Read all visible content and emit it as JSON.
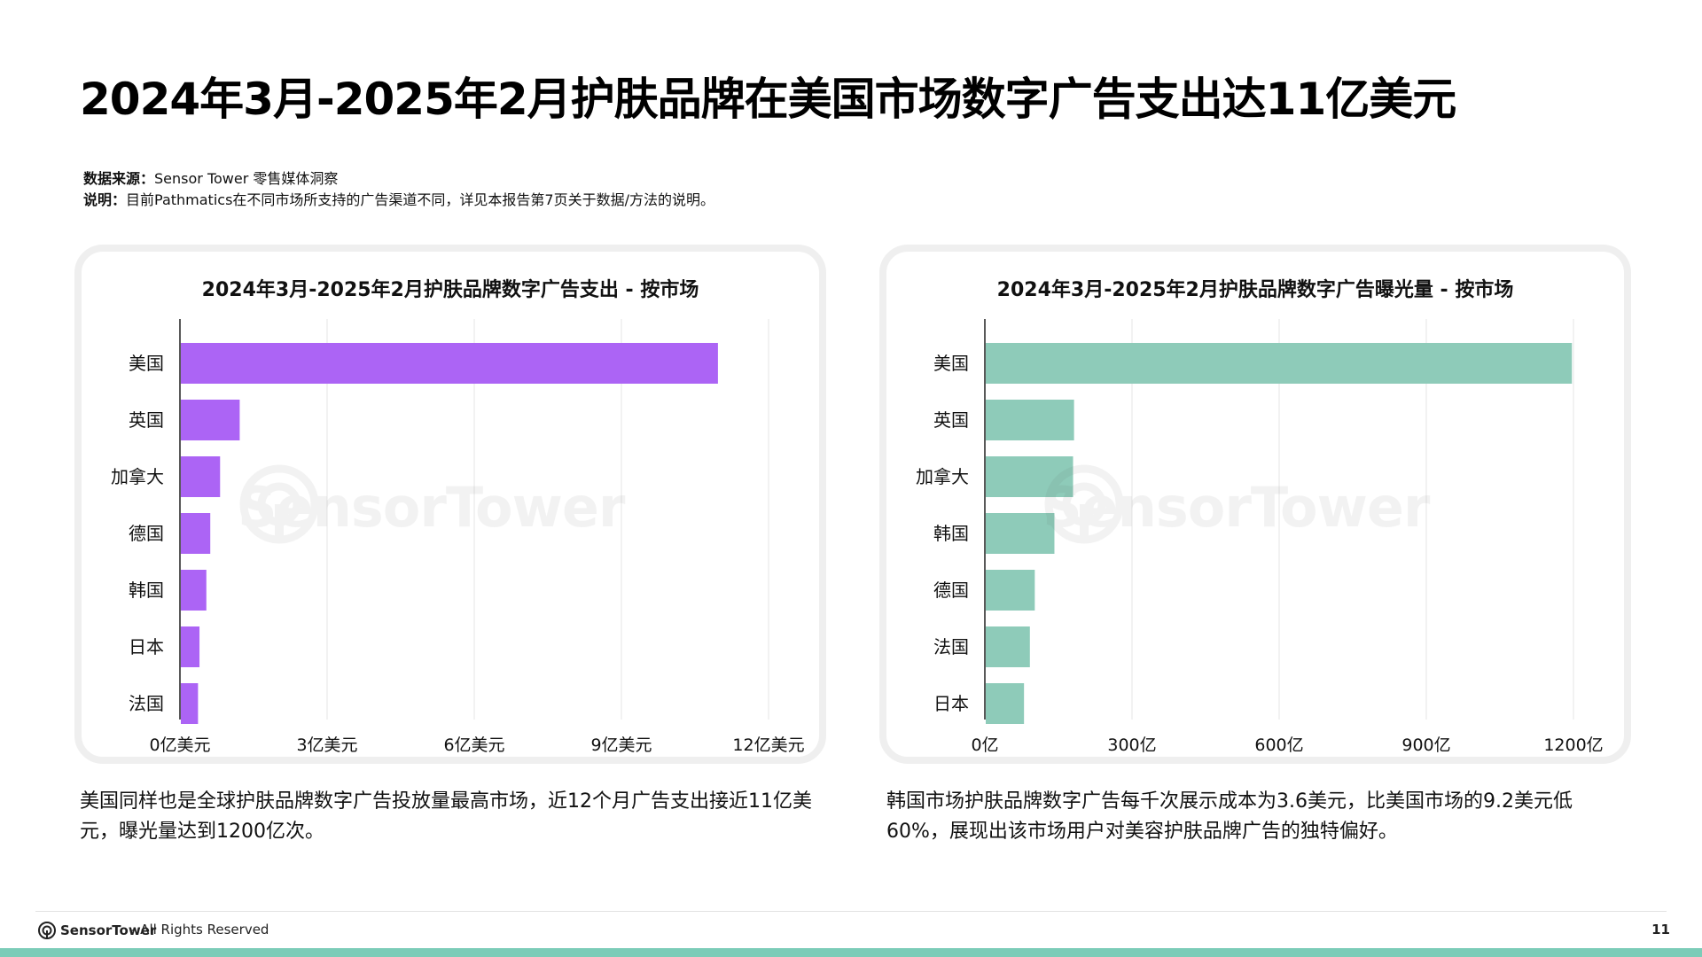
{
  "page": {
    "title": "2024年3月-2025年2月护肤品牌在美国市场数字广告支出达11亿美元",
    "source_key": "数据来源：",
    "source_value": "Sensor Tower 零售媒体洞察",
    "note_key": "说明：",
    "note_value": "目前Pathmatics在不同市场所支持的广告渠道不同，详见本报告第7页关于数据/方法的说明。",
    "watermark_text": "SensorTower",
    "caption_left": "美国同样也是全球护肤品牌数字广告投放量最高市场，近12个月广告支出接近11亿美元，曝光量达到1200亿次。",
    "caption_right": "韩国市场护肤品牌数字广告每千次展示成本为3.6美元，比美国市场的9.2美元低60%，展现出该市场用户对美容护肤品牌广告的独特偏好。",
    "footer_brand": "SensorTower",
    "footer_text": "- All Rights Reserved",
    "page_number": "11",
    "band_color": "#7cccb8"
  },
  "chart_data": [
    {
      "type": "bar",
      "orientation": "horizontal",
      "title": "2024年3月-2025年2月护肤品牌数字广告支出 - 按市场",
      "categories": [
        "美国",
        "英国",
        "加拿大",
        "德国",
        "韩国",
        "日本",
        "法国"
      ],
      "values": [
        10.95,
        1.2,
        0.8,
        0.6,
        0.52,
        0.38,
        0.35
      ],
      "unit": "亿美元",
      "xlim": [
        0,
        12
      ],
      "ticks": [
        0,
        3,
        6,
        9,
        12
      ],
      "tick_labels": [
        "0亿美元",
        "3亿美元",
        "6亿美元",
        "9亿美元",
        "12亿美元"
      ],
      "grid": true,
      "color": "#ac64f5"
    },
    {
      "type": "bar",
      "orientation": "horizontal",
      "title": "2024年3月-2025年2月护肤品牌数字广告曝光量 - 按市场",
      "categories": [
        "美国",
        "英国",
        "加拿大",
        "韩国",
        "德国",
        "法国",
        "日本"
      ],
      "values": [
        1195,
        180,
        178,
        140,
        100,
        90,
        78
      ],
      "unit": "亿",
      "xlim": [
        0,
        1200
      ],
      "ticks": [
        0,
        300,
        600,
        900,
        1200
      ],
      "tick_labels": [
        "0亿",
        "300亿",
        "600亿",
        "900亿",
        "1200亿"
      ],
      "grid": true,
      "color": "#8ecbb9"
    }
  ]
}
